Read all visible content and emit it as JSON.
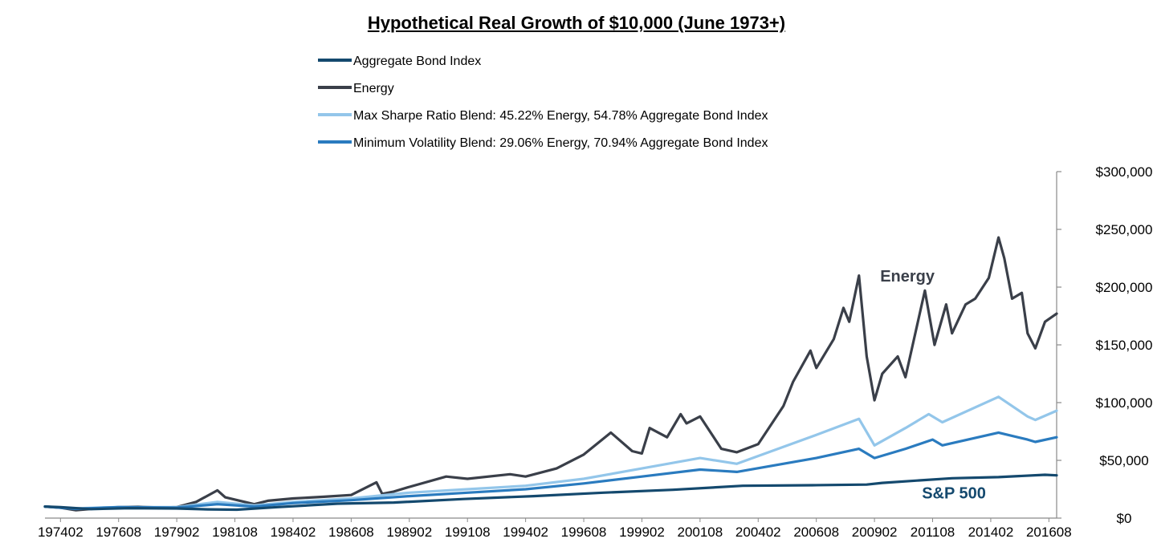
{
  "chart_data": {
    "type": "line",
    "title": "Hypothetical Real Growth of $10,000 (June 1973+)",
    "xlabel": "",
    "ylabel": "",
    "x_tick_labels": [
      "197402",
      "197608",
      "197902",
      "198108",
      "198402",
      "198608",
      "198902",
      "199108",
      "199402",
      "199608",
      "199902",
      "200108",
      "200402",
      "200608",
      "200902",
      "201108",
      "201402",
      "201608"
    ],
    "y_tick_labels": [
      "$0",
      "$50,000",
      "$100,000",
      "$150,000",
      "$200,000",
      "$250,000",
      "$300,000"
    ],
    "ylim": [
      0,
      300000
    ],
    "xlim": [
      "1973-06",
      "2016-12"
    ],
    "legend_position": "top-center",
    "grid": false,
    "annotations": [
      {
        "text": "Energy",
        "color": "#3a3f49",
        "at": {
          "x": "2010-07",
          "y": 205000
        }
      },
      {
        "text": "S&P 500",
        "color": "#14496e",
        "at": {
          "x": "2012-07",
          "y": 17000
        }
      }
    ],
    "series": [
      {
        "name": "Aggregate Bond Index",
        "color": "#14496e",
        "points": [
          [
            "1973-06",
            10000
          ],
          [
            "1974-02",
            9500
          ],
          [
            "1975-06",
            7800
          ],
          [
            "1977-01",
            8600
          ],
          [
            "1979-02",
            8300
          ],
          [
            "1980-06",
            7600
          ],
          [
            "1981-09",
            7300
          ],
          [
            "1983-06",
            9500
          ],
          [
            "1986-01",
            12500
          ],
          [
            "1988-06",
            13500
          ],
          [
            "1991-06",
            16500
          ],
          [
            "1994-06",
            19000
          ],
          [
            "1997-06",
            22000
          ],
          [
            "2000-06",
            24500
          ],
          [
            "2003-06",
            28000
          ],
          [
            "2006-06",
            28500
          ],
          [
            "2008-10",
            29000
          ],
          [
            "2009-06",
            30500
          ],
          [
            "2012-06",
            34500
          ],
          [
            "2014-06",
            35500
          ],
          [
            "2016-06",
            37500
          ],
          [
            "2016-12",
            37000
          ]
        ]
      },
      {
        "name": "Energy",
        "color": "#3a3f49",
        "points": [
          [
            "1973-06",
            10000
          ],
          [
            "1974-02",
            9000
          ],
          [
            "1974-10",
            6800
          ],
          [
            "1975-06",
            8000
          ],
          [
            "1976-08",
            9500
          ],
          [
            "1977-06",
            9800
          ],
          [
            "1978-06",
            9000
          ],
          [
            "1979-02",
            9500
          ],
          [
            "1979-12",
            14000
          ],
          [
            "1980-11",
            24000
          ],
          [
            "1981-03",
            18000
          ],
          [
            "1982-06",
            12000
          ],
          [
            "1983-01",
            15000
          ],
          [
            "1984-02",
            17000
          ],
          [
            "1985-06",
            18500
          ],
          [
            "1986-08",
            20000
          ],
          [
            "1987-09",
            31000
          ],
          [
            "1987-12",
            21000
          ],
          [
            "1988-06",
            23000
          ],
          [
            "1989-02",
            27000
          ],
          [
            "1990-09",
            36000
          ],
          [
            "1991-08",
            34000
          ],
          [
            "1993-06",
            38000
          ],
          [
            "1994-02",
            36000
          ],
          [
            "1995-06",
            43000
          ],
          [
            "1996-08",
            55000
          ],
          [
            "1997-10",
            74000
          ],
          [
            "1998-09",
            58000
          ],
          [
            "1999-02",
            56000
          ],
          [
            "1999-06",
            78000
          ],
          [
            "2000-03",
            70000
          ],
          [
            "2000-10",
            90000
          ],
          [
            "2001-01",
            82000
          ],
          [
            "2001-08",
            88000
          ],
          [
            "2002-07",
            60000
          ],
          [
            "2003-03",
            57000
          ],
          [
            "2004-02",
            64000
          ],
          [
            "2005-03",
            97000
          ],
          [
            "2005-08",
            118000
          ],
          [
            "2006-05",
            145000
          ],
          [
            "2006-08",
            130000
          ],
          [
            "2007-05",
            155000
          ],
          [
            "2007-10",
            182000
          ],
          [
            "2008-01",
            170000
          ],
          [
            "2008-06",
            210000
          ],
          [
            "2008-10",
            140000
          ],
          [
            "2009-02",
            102000
          ],
          [
            "2009-06",
            125000
          ],
          [
            "2010-02",
            140000
          ],
          [
            "2010-06",
            122000
          ],
          [
            "2011-04",
            197000
          ],
          [
            "2011-09",
            150000
          ],
          [
            "2012-03",
            185000
          ],
          [
            "2012-06",
            160000
          ],
          [
            "2013-01",
            185000
          ],
          [
            "2013-06",
            190000
          ],
          [
            "2014-01",
            208000
          ],
          [
            "2014-06",
            243000
          ],
          [
            "2014-09",
            225000
          ],
          [
            "2015-01",
            190000
          ],
          [
            "2015-06",
            195000
          ],
          [
            "2015-09",
            160000
          ],
          [
            "2016-01",
            147000
          ],
          [
            "2016-06",
            170000
          ],
          [
            "2016-12",
            177000
          ]
        ]
      },
      {
        "name": "Max Sharpe Ratio Blend: 45.22% Energy, 54.78% Aggregate Bond Index",
        "color": "#93c6ea",
        "points": [
          [
            "1973-06",
            10000
          ],
          [
            "1974-10",
            8500
          ],
          [
            "1976-08",
            9500
          ],
          [
            "1979-02",
            9500
          ],
          [
            "1980-11",
            14000
          ],
          [
            "1982-06",
            11000
          ],
          [
            "1984-02",
            14000
          ],
          [
            "1986-08",
            17000
          ],
          [
            "1989-02",
            22000
          ],
          [
            "1991-08",
            25000
          ],
          [
            "1994-02",
            28000
          ],
          [
            "1996-08",
            34000
          ],
          [
            "1999-02",
            43000
          ],
          [
            "2001-08",
            52000
          ],
          [
            "2003-03",
            47000
          ],
          [
            "2006-08",
            72000
          ],
          [
            "2008-06",
            86000
          ],
          [
            "2009-02",
            63000
          ],
          [
            "2010-06",
            78000
          ],
          [
            "2011-06",
            90000
          ],
          [
            "2012-01",
            83000
          ],
          [
            "2014-06",
            105000
          ],
          [
            "2015-09",
            88000
          ],
          [
            "2016-01",
            85000
          ],
          [
            "2016-12",
            93000
          ]
        ]
      },
      {
        "name": "Minimum Volatility Blend: 29.06% Energy, 70.94% Aggregate Bond Index",
        "color": "#2a7bbf",
        "points": [
          [
            "1973-06",
            10000
          ],
          [
            "1974-10",
            8000
          ],
          [
            "1976-08",
            9500
          ],
          [
            "1979-02",
            9000
          ],
          [
            "1980-11",
            12000
          ],
          [
            "1982-06",
            10000
          ],
          [
            "1984-02",
            13000
          ],
          [
            "1986-08",
            15500
          ],
          [
            "1989-02",
            19000
          ],
          [
            "1991-08",
            22000
          ],
          [
            "1994-02",
            25000
          ],
          [
            "1996-08",
            30000
          ],
          [
            "1999-02",
            36000
          ],
          [
            "2001-08",
            42000
          ],
          [
            "2003-03",
            40000
          ],
          [
            "2006-08",
            52000
          ],
          [
            "2008-06",
            60000
          ],
          [
            "2009-02",
            52000
          ],
          [
            "2010-06",
            60000
          ],
          [
            "2011-08",
            68000
          ],
          [
            "2012-01",
            63000
          ],
          [
            "2014-06",
            74000
          ],
          [
            "2015-09",
            68000
          ],
          [
            "2016-01",
            66000
          ],
          [
            "2016-12",
            70000
          ]
        ]
      }
    ]
  }
}
